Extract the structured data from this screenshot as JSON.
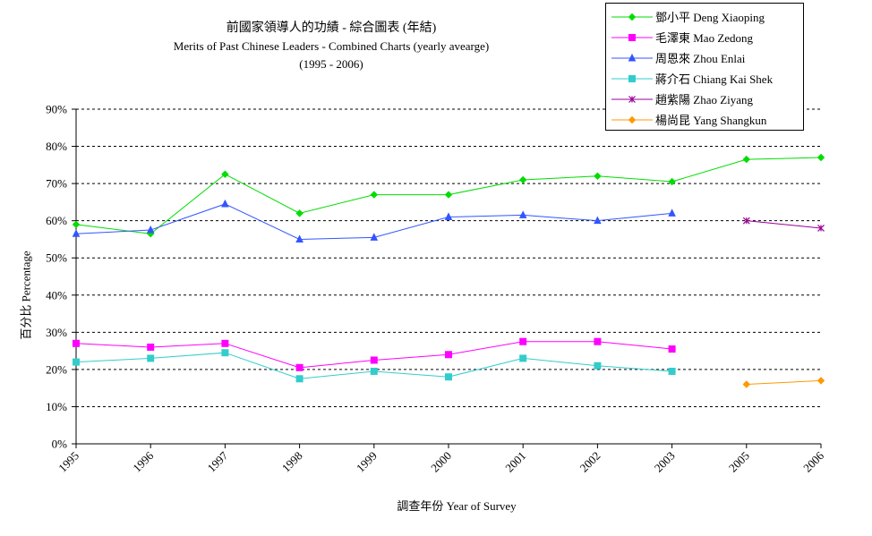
{
  "chart_data": {
    "type": "line",
    "title": "前國家領導人的功績 - 綜合圖表 (年結)",
    "subtitle": "Merits of Past Chinese Leaders - Combined Charts (yearly avearge)",
    "period": "(1995 - 2006)",
    "xlabel": "調查年份 Year of Survey",
    "ylabel": "百分比 Percentage",
    "categories": [
      "1995",
      "1996",
      "1997",
      "1998",
      "1999",
      "2000",
      "2001",
      "2002",
      "2003",
      "2005",
      "2006"
    ],
    "ylim": [
      0,
      90
    ],
    "yticks": [
      "0%",
      "10%",
      "20%",
      "30%",
      "40%",
      "50%",
      "60%",
      "70%",
      "80%",
      "90%"
    ],
    "grid": true,
    "legend_position": "top-right",
    "series": [
      {
        "name": "鄧小平 Deng Xiaoping",
        "color": "#00dd00",
        "marker": "diamond",
        "values": [
          59,
          56.5,
          72.5,
          62,
          67,
          67,
          71,
          72,
          70.5,
          76.5,
          77
        ]
      },
      {
        "name": "毛澤東 Mao Zedong",
        "color": "#ff00ff",
        "marker": "square",
        "values": [
          27,
          26,
          27,
          20.5,
          22.5,
          24,
          27.5,
          27.5,
          25.5,
          null,
          null
        ]
      },
      {
        "name": "周恩來 Zhou Enlai",
        "color": "#3355ff",
        "marker": "triangle",
        "values": [
          56.5,
          57.5,
          64.5,
          55,
          55.5,
          61,
          61.5,
          60,
          62,
          null,
          null
        ]
      },
      {
        "name": "蔣介石 Chiang Kai Shek",
        "color": "#33cccc",
        "marker": "square",
        "values": [
          22,
          23,
          24.5,
          17.5,
          19.5,
          18,
          23,
          21,
          19.5,
          null,
          null
        ]
      },
      {
        "name": "趙紫陽 Zhao Ziyang",
        "color": "#990099",
        "marker": "star",
        "values": [
          null,
          null,
          null,
          null,
          null,
          null,
          null,
          null,
          null,
          60,
          58
        ]
      },
      {
        "name": "楊尚昆 Yang Shangkun",
        "color": "#ff9900",
        "marker": "diamond",
        "values": [
          null,
          null,
          null,
          null,
          null,
          null,
          null,
          null,
          null,
          16,
          17
        ]
      }
    ]
  }
}
